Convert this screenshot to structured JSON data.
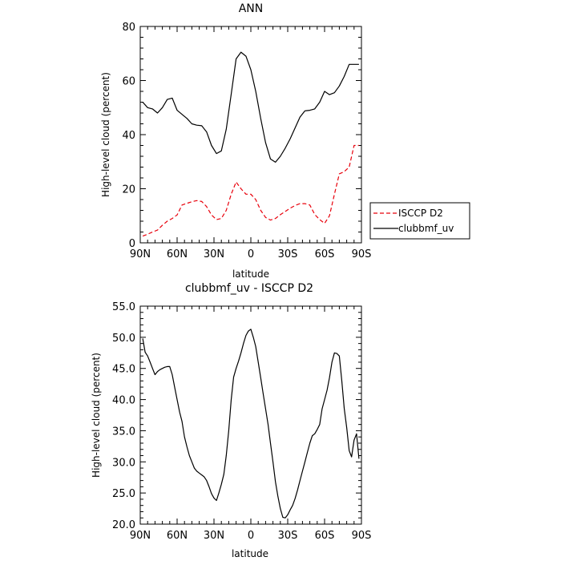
{
  "chart_data": [
    {
      "type": "line",
      "title": "ANN",
      "xlabel": "latitude",
      "ylabel": "High-level cloud (percent)",
      "xlim": [
        90,
        -90
      ],
      "ylim": [
        0,
        80
      ],
      "x_ticks": [
        90,
        60,
        30,
        0,
        -30,
        -60,
        -90
      ],
      "x_tick_labels": [
        "90N",
        "60N",
        "30N",
        "0",
        "30S",
        "60S",
        "90S"
      ],
      "y_ticks": [
        0,
        20,
        40,
        60,
        80
      ],
      "y_tick_labels": [
        "0",
        "20",
        "40",
        "60",
        "80"
      ],
      "legend_position": "right",
      "series": [
        {
          "name": "ISCCP D2",
          "color": "#e8000b",
          "dash": "dashed",
          "x": [
            88,
            84,
            80,
            76,
            72,
            68,
            64,
            60,
            56,
            52,
            48,
            44,
            40,
            36,
            32,
            28,
            24,
            20,
            16,
            12,
            8,
            4,
            0,
            -4,
            -8,
            -12,
            -16,
            -20,
            -24,
            -28,
            -32,
            -36,
            -40,
            -44,
            -48,
            -52,
            -56,
            -60,
            -64,
            -68,
            -72,
            -76,
            -80,
            -84,
            -88
          ],
          "y": [
            2.5,
            3.2,
            4.0,
            4.7,
            6.5,
            8.0,
            9.0,
            10.3,
            14.0,
            14.6,
            15.2,
            15.6,
            15.3,
            13.4,
            10.3,
            8.6,
            9.0,
            12.0,
            18.0,
            22.5,
            20.0,
            18.0,
            18.0,
            16.0,
            12.0,
            9.4,
            8.4,
            9.0,
            10.4,
            11.6,
            12.8,
            13.8,
            14.5,
            14.5,
            14.0,
            10.5,
            8.6,
            7.2,
            10.0,
            18.0,
            25.5,
            26.3,
            28.0,
            36.0,
            36.0
          ]
        },
        {
          "name": "clubbmf_uv",
          "color": "#000000",
          "dash": "solid",
          "x": [
            88,
            84,
            80,
            76,
            72,
            68,
            64,
            60,
            56,
            52,
            48,
            44,
            40,
            36,
            32,
            28,
            24,
            20,
            16,
            12,
            8,
            4,
            0,
            -4,
            -8,
            -12,
            -16,
            -20,
            -24,
            -28,
            -32,
            -36,
            -40,
            -44,
            -48,
            -52,
            -56,
            -60,
            -64,
            -68,
            -72,
            -76,
            -80,
            -84,
            -88
          ],
          "y": [
            52.0,
            50.0,
            49.5,
            48.0,
            50.0,
            53.0,
            53.5,
            49.0,
            47.5,
            46.0,
            44.0,
            43.5,
            43.3,
            41.0,
            36.0,
            33.0,
            34.0,
            42.0,
            55.0,
            68.0,
            70.5,
            69.0,
            64.0,
            56.0,
            46.0,
            37.0,
            31.0,
            29.8,
            32.0,
            35.0,
            38.5,
            42.5,
            46.5,
            48.8,
            49.0,
            49.5,
            52.0,
            56.0,
            54.8,
            55.5,
            58.0,
            61.5,
            66.0,
            66.0,
            66.0
          ]
        }
      ]
    },
    {
      "type": "line",
      "title": "clubbmf_uv - ISCCP D2",
      "xlabel": "latitude",
      "ylabel": "High-level cloud (percent)",
      "xlim": [
        90,
        -90
      ],
      "ylim": [
        20,
        55
      ],
      "x_ticks": [
        90,
        60,
        30,
        0,
        -30,
        -60,
        -90
      ],
      "x_tick_labels": [
        "90N",
        "60N",
        "30N",
        "0",
        "30S",
        "60S",
        "90S"
      ],
      "y_ticks": [
        20,
        25,
        30,
        35,
        40,
        45,
        50,
        55
      ],
      "y_tick_labels": [
        "20.0",
        "25.0",
        "30.0",
        "35.0",
        "40.0",
        "45.0",
        "50.0",
        "55.0"
      ],
      "series": [
        {
          "color": "#000000",
          "dash": "solid",
          "x": [
            88,
            86,
            84,
            82,
            80,
            78,
            76,
            74,
            72,
            70,
            68,
            66,
            64,
            62,
            60,
            58,
            56,
            54,
            52,
            50,
            48,
            46,
            44,
            42,
            40,
            38,
            36,
            34,
            32,
            30,
            28,
            26,
            24,
            22,
            20,
            18,
            16,
            14,
            12,
            10,
            8,
            6,
            4,
            2,
            0,
            -2,
            -4,
            -6,
            -8,
            -10,
            -12,
            -14,
            -16,
            -18,
            -20,
            -22,
            -24,
            -26,
            -28,
            -30,
            -32,
            -34,
            -36,
            -38,
            -40,
            -42,
            -44,
            -46,
            -48,
            -50,
            -52,
            -54,
            -56,
            -58,
            -60,
            -62,
            -64,
            -66,
            -68,
            -70,
            -72,
            -74,
            -76,
            -78,
            -80,
            -82,
            -84,
            -86,
            -88
          ],
          "y": [
            49.8,
            47.6,
            47.0,
            46.0,
            45.0,
            44.0,
            44.5,
            44.8,
            45.0,
            45.2,
            45.3,
            45.3,
            44.0,
            42.0,
            40.0,
            38.0,
            36.5,
            34.0,
            32.4,
            31.0,
            30.0,
            29.0,
            28.5,
            28.2,
            27.9,
            27.6,
            27.0,
            26.0,
            24.9,
            24.2,
            23.8,
            25.0,
            26.4,
            28.0,
            31.0,
            35.0,
            40.0,
            43.6,
            45.0,
            46.2,
            47.5,
            49.0,
            50.3,
            51.0,
            51.3,
            50.0,
            48.5,
            46.0,
            43.5,
            41.0,
            38.5,
            36.0,
            33.0,
            30.0,
            26.8,
            24.5,
            22.5,
            21.1,
            21.0,
            21.5,
            22.3,
            23.0,
            24.1,
            25.5,
            27.0,
            28.5,
            30.0,
            31.5,
            33.0,
            34.2,
            34.5,
            35.2,
            36.0,
            38.5,
            40.0,
            41.5,
            43.5,
            46.0,
            47.5,
            47.4,
            47.0,
            43.0,
            38.6,
            35.5,
            31.8,
            30.8,
            33.5,
            34.5,
            30.5
          ]
        }
      ]
    }
  ]
}
